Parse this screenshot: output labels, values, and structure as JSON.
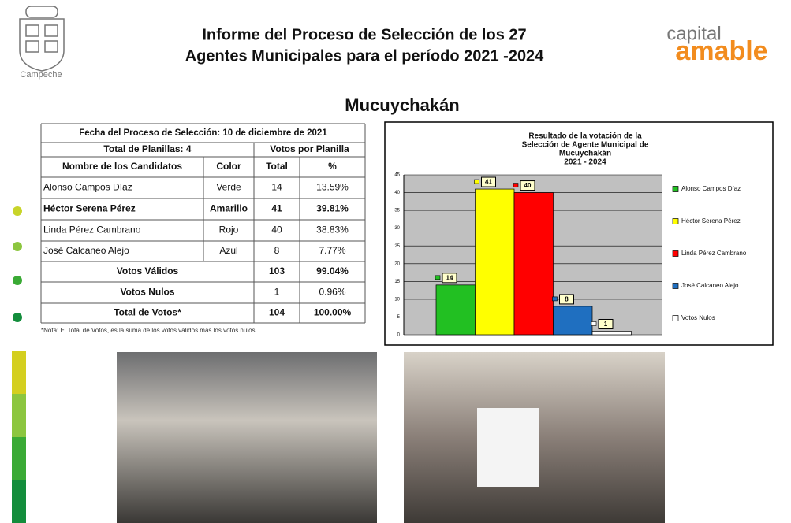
{
  "header": {
    "title_lines": [
      "Informe del Proceso de Selección de los 27",
      "Agentes Municipales para el período 2021 -2024"
    ],
    "logo_text": "Campeche",
    "brand": [
      "capital",
      "amable"
    ]
  },
  "subtitle": "Mucuychakán",
  "table": {
    "date_row": "Fecha del Proceso de Selección: 10 de diciembre de 2021",
    "planillas": "Total de Planillas: 4",
    "votos_header": "Votos por Planilla",
    "columns": [
      "Nombre de los Candidatos",
      "Color",
      "Total",
      "%"
    ],
    "rows": [
      [
        "Alonso Campos Díaz",
        "Verde",
        "14",
        "13.59%"
      ],
      [
        "Héctor Serena Pérez",
        "Amarillo",
        "41",
        "39.81%"
      ],
      [
        "Linda Pérez Cambrano",
        "Rojo",
        "40",
        "38.83%"
      ],
      [
        "José Calcaneo Alejo",
        "Azul",
        "8",
        "7.77%"
      ]
    ],
    "summary": [
      [
        "Votos Válidos",
        "103",
        "99.04%"
      ],
      [
        "Votos Nulos",
        "1",
        "0.96%"
      ],
      [
        "Total de Votos*",
        "104",
        "100.00%"
      ]
    ]
  },
  "note": "*Nota: El Total de Votos, es la suma de los votos válidos más los votos nulos.",
  "chart_data": {
    "type": "bar",
    "title": [
      "Resultado de la votación de la",
      "Selección de Agente Municipal de",
      "Mucuychakán",
      "2021 - 2024"
    ],
    "series": [
      {
        "name": "Alonso Campos Díaz",
        "color": "#22c022",
        "values": [
          14
        ]
      },
      {
        "name": "Héctor Serena Pérez",
        "color": "#ffff00",
        "values": [
          41
        ]
      },
      {
        "name": "Linda Pérez Cambrano",
        "color": "#ff0000",
        "values": [
          40
        ]
      },
      {
        "name": "José Calcaneo Alejo",
        "color": "#1f6fc0",
        "values": [
          8
        ]
      },
      {
        "name": "Votos Nulos",
        "color": "#ffffff",
        "values": [
          1
        ]
      }
    ],
    "ylim": [
      0,
      45
    ],
    "yticks": [
      0,
      5,
      10,
      15,
      20,
      25,
      30,
      35,
      40,
      45
    ],
    "grid": true,
    "legend": "right"
  }
}
